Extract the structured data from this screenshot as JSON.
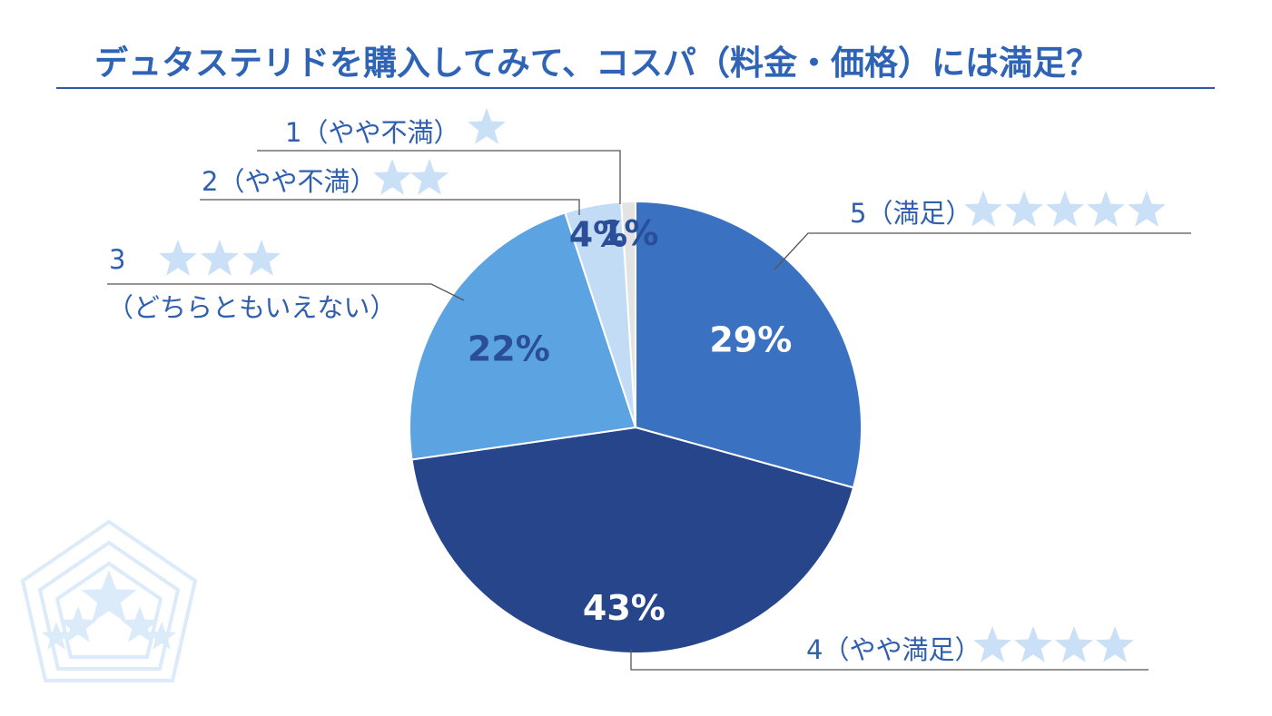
{
  "chart_data": {
    "type": "pie",
    "title": "デュタステリドを購入してみて、コスパ（料金・価格）には満足？",
    "slices": [
      {
        "name": "5（満足）",
        "subtitle": "",
        "stars": 5,
        "value": 29,
        "label": "29%",
        "color": "#3a71c0",
        "text_color": "#ffffff"
      },
      {
        "name": "4（やや満足）",
        "subtitle": "",
        "stars": 4,
        "value": 43,
        "label": "43%",
        "color": "#27458b",
        "text_color": "#ffffff"
      },
      {
        "name": "3",
        "subtitle": "（どちらともいえない）",
        "stars": 3,
        "value": 22,
        "label": "22%",
        "color": "#5ca3e2",
        "text_color": "#2a4f98"
      },
      {
        "name": "2（やや不満）",
        "subtitle": "",
        "stars": 2,
        "value": 4,
        "label": "4%",
        "color": "#c3dcf5",
        "text_color": "#2a4f98"
      },
      {
        "name": "1（やや不満）",
        "subtitle": "",
        "stars": 1,
        "value": 1,
        "label": "1%",
        "color": "#e3e3e3",
        "text_color": "#2a4f98"
      }
    ],
    "legend": "leader-lines"
  },
  "colors": {
    "title": "#2f63b6",
    "rule": "#2f5aa8",
    "star": "#c9e0f7",
    "leader": "#555555",
    "emblem": "#dcebfa"
  },
  "decoration": "pentagon-star-emblem"
}
